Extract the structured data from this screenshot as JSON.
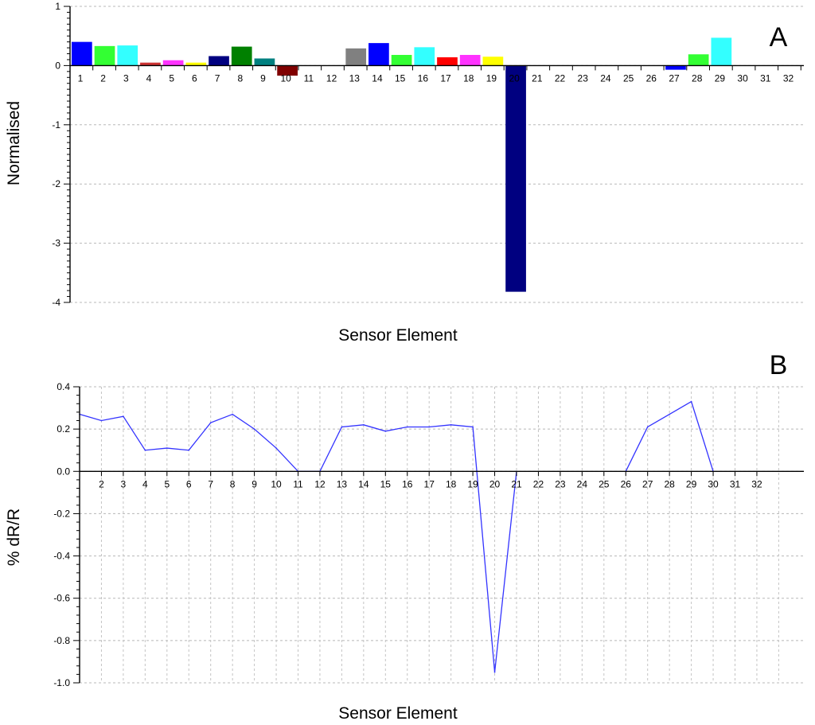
{
  "chart_data": [
    {
      "panel_label": "A",
      "type": "bar",
      "ylabel": "Normalised",
      "xlabel": "Sensor Element",
      "ylim": [
        -4,
        1
      ],
      "yticks": [
        "1",
        "0",
        "-1",
        "-2",
        "-3",
        "-4"
      ],
      "grid": true,
      "categories": [
        "1",
        "2",
        "3",
        "4",
        "5",
        "6",
        "7",
        "8",
        "9",
        "10",
        "11",
        "12",
        "13",
        "14",
        "15",
        "16",
        "17",
        "18",
        "19",
        "20",
        "21",
        "22",
        "23",
        "24",
        "25",
        "26",
        "27",
        "28",
        "29",
        "30",
        "31",
        "32"
      ],
      "values": [
        0.4,
        0.33,
        0.34,
        0.05,
        0.09,
        0.05,
        0.16,
        0.32,
        0.12,
        -0.17,
        0,
        0,
        0.29,
        0.38,
        0.18,
        0.31,
        0.14,
        0.18,
        0.15,
        -3.82,
        0,
        0,
        0,
        0,
        0,
        0,
        -0.07,
        0.19,
        0.47,
        0,
        0,
        0
      ],
      "colors": [
        "#0000ff",
        "#33ff33",
        "#33ffff",
        "#cc3333",
        "#ff33ff",
        "#ffff00",
        "#000080",
        "#008000",
        "#008080",
        "#800000",
        "#000000",
        "#000000",
        "#808080",
        "#0000ff",
        "#33ff33",
        "#33ffff",
        "#ff0000",
        "#ff33ff",
        "#ffff00",
        "#000080",
        "#000000",
        "#000000",
        "#000000",
        "#000000",
        "#000000",
        "#000000",
        "#0000ff",
        "#33ff33",
        "#33ffff",
        "#000000",
        "#000000",
        "#000000"
      ]
    },
    {
      "panel_label": "B",
      "type": "line",
      "ylabel": "% dR/R",
      "xlabel": "Sensor Element",
      "ylim": [
        -1.0,
        0.4
      ],
      "yticks": [
        "0.4",
        "0.2",
        "0.0",
        "-0.2",
        "-0.4",
        "-0.6",
        "-0.8",
        "-1.0"
      ],
      "xtick_labels": [
        "2",
        "3",
        "4",
        "5",
        "6",
        "7",
        "8",
        "9",
        "10",
        "11",
        "12",
        "13",
        "14",
        "15",
        "16",
        "17",
        "18",
        "19",
        "20",
        "21",
        "22",
        "23",
        "24",
        "25",
        "26",
        "27",
        "28",
        "29",
        "30",
        "31",
        "32"
      ],
      "grid": true,
      "series": [
        {
          "color": "#3333ff",
          "x": [
            1,
            2,
            3,
            4,
            5,
            6,
            7,
            8,
            9,
            10,
            11,
            12,
            13,
            14,
            15,
            16,
            17,
            18,
            19,
            20,
            21,
            26,
            27,
            28,
            29,
            30
          ],
          "y": [
            0.27,
            0.24,
            0.26,
            0.1,
            0.11,
            0.1,
            0.23,
            0.27,
            0.2,
            0.11,
            0.0,
            0.0,
            0.21,
            0.22,
            0.19,
            0.21,
            0.21,
            0.22,
            0.21,
            -0.95,
            0.0,
            0.0,
            0.21,
            0.27,
            0.33,
            0.0
          ]
        }
      ]
    }
  ]
}
